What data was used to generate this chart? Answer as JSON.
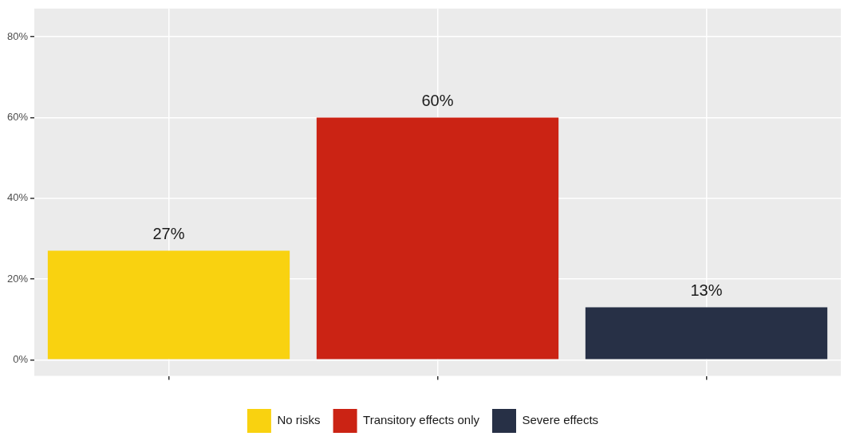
{
  "chart_data": {
    "type": "bar",
    "categories": [
      null,
      null,
      null
    ],
    "series": [
      {
        "name": "No risks",
        "color": "#f9d210",
        "values": [
          27,
          null,
          null
        ],
        "value_labels": [
          "27%",
          null,
          null
        ]
      },
      {
        "name": "Transitory effects only",
        "color": "#cb2314",
        "values": [
          null,
          60,
          null
        ],
        "value_labels": [
          null,
          "60%",
          null
        ]
      },
      {
        "name": "Severe effects",
        "color": "#273046",
        "values": [
          null,
          null,
          13
        ],
        "value_labels": [
          null,
          null,
          "13%"
        ]
      }
    ],
    "ylim": [
      -4,
      87
    ],
    "yticks": [
      {
        "value": 0,
        "label": "0%"
      },
      {
        "value": 20,
        "label": "20%"
      },
      {
        "value": 40,
        "label": "40%"
      },
      {
        "value": 60,
        "label": "60%"
      },
      {
        "value": 80,
        "label": "80%"
      }
    ],
    "grid": true,
    "legend": "bottom"
  }
}
